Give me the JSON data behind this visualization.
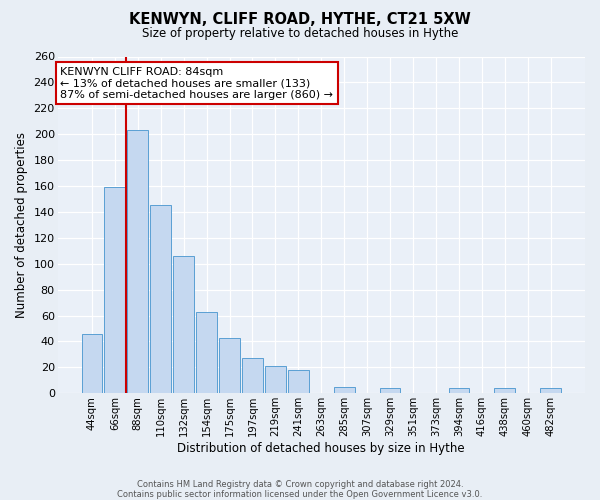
{
  "title": "KENWYN, CLIFF ROAD, HYTHE, CT21 5XW",
  "subtitle": "Size of property relative to detached houses in Hythe",
  "xlabel": "Distribution of detached houses by size in Hythe",
  "ylabel": "Number of detached properties",
  "bar_labels": [
    "44sqm",
    "66sqm",
    "88sqm",
    "110sqm",
    "132sqm",
    "154sqm",
    "175sqm",
    "197sqm",
    "219sqm",
    "241sqm",
    "263sqm",
    "285sqm",
    "307sqm",
    "329sqm",
    "351sqm",
    "373sqm",
    "394sqm",
    "416sqm",
    "438sqm",
    "460sqm",
    "482sqm"
  ],
  "bar_values": [
    46,
    159,
    203,
    145,
    106,
    63,
    43,
    27,
    21,
    18,
    0,
    5,
    0,
    4,
    0,
    0,
    4,
    0,
    4,
    0,
    4
  ],
  "bar_color": "#c5d8f0",
  "bar_edge_color": "#5a9fd4",
  "ylim": [
    0,
    260
  ],
  "yticks": [
    0,
    20,
    40,
    60,
    80,
    100,
    120,
    140,
    160,
    180,
    200,
    220,
    240,
    260
  ],
  "vline_color": "#cc0000",
  "annotation_title": "KENWYN CLIFF ROAD: 84sqm",
  "annotation_line1": "← 13% of detached houses are smaller (133)",
  "annotation_line2": "87% of semi-detached houses are larger (860) →",
  "annotation_box_color": "#ffffff",
  "annotation_box_edge": "#cc0000",
  "footer1": "Contains HM Land Registry data © Crown copyright and database right 2024.",
  "footer2": "Contains public sector information licensed under the Open Government Licence v3.0.",
  "background_color": "#e8eef5",
  "plot_bg_color": "#eaf0f8"
}
